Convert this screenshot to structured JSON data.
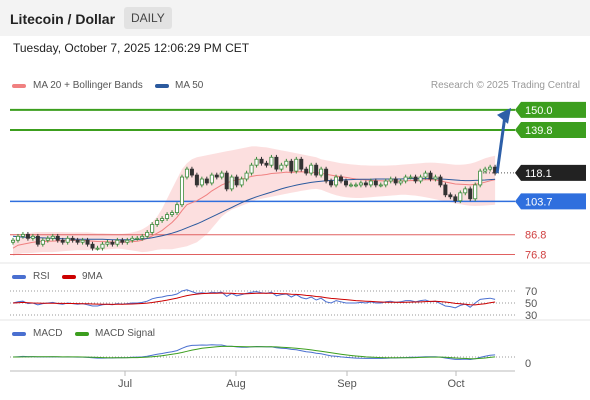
{
  "header": {
    "title": "Litecoin / Dollar",
    "timeframe": "DAILY"
  },
  "timestamp": "Tuesday, October 7, 2025 12:06:29 PM CET",
  "legend": {
    "ma_bb": "MA 20 + Bollinger Bands",
    "ma50": "MA 50",
    "ma_bb_color": "#f08080",
    "ma50_color": "#2b5a9e"
  },
  "credit": "Research © 2025 Trading Central",
  "rsi_panel": {
    "label": "RSI",
    "ma_label": "9MA",
    "rsi_color": "#4a6fd0",
    "ma_color": "#cc0000",
    "levels": [
      "70",
      "50",
      "30"
    ]
  },
  "macd_panel": {
    "label": "MACD",
    "signal_label": "MACD Signal",
    "macd_color": "#4a6fd0",
    "signal_color": "#3c9e1e",
    "zero_label": "0"
  },
  "chart_data": {
    "type": "candlestick",
    "price_range": [
      73,
      156
    ],
    "levels": [
      {
        "value": "150.0",
        "kind": "target",
        "color": "#3c9e1e"
      },
      {
        "value": "139.8",
        "kind": "resistance",
        "color": "#3c9e1e"
      },
      {
        "value": "118.1",
        "kind": "last",
        "color": "#222222"
      },
      {
        "value": "103.7",
        "kind": "pivot",
        "color": "#2f6fde"
      },
      {
        "value": "86.8",
        "kind": "support",
        "color": "#e06060"
      },
      {
        "value": "76.8",
        "kind": "support",
        "color": "#e06060"
      }
    ],
    "x_labels": [
      "Jul",
      "Aug",
      "Sep",
      "Oct"
    ],
    "closes": [
      84,
      86,
      87,
      85,
      86,
      82,
      84,
      85,
      86,
      84,
      83,
      85,
      84,
      83,
      84,
      82,
      80,
      80,
      82,
      83,
      82,
      84,
      83,
      84,
      85,
      85,
      86,
      88,
      92,
      94,
      95,
      97,
      98,
      102,
      116,
      120,
      117,
      112,
      115,
      113,
      117,
      116,
      118,
      110,
      116,
      112,
      115,
      118,
      122,
      125,
      123,
      122,
      126,
      120,
      122,
      124,
      119,
      125,
      120,
      118,
      122,
      117,
      120,
      114,
      112,
      116,
      114,
      112,
      112,
      112,
      113,
      112,
      114,
      112,
      112,
      114,
      115,
      113,
      114,
      116,
      116,
      114,
      116,
      118,
      115,
      116,
      112,
      107,
      106,
      104,
      108,
      110,
      105,
      112,
      119,
      120,
      121,
      118
    ],
    "ma20": [
      80,
      81.5,
      82,
      82.5,
      83,
      83.2,
      83.4,
      83.5,
      83.6,
      83.7,
      83.8,
      83.9,
      84,
      84,
      84,
      83.8,
      83.6,
      83.4,
      83.3,
      83.2,
      83.1,
      83,
      83,
      83.1,
      83.3,
      83.5,
      84,
      85,
      86.2,
      87.6,
      89,
      91,
      93,
      95.6,
      99,
      102,
      103,
      104,
      105.5,
      107,
      109,
      110.5,
      112,
      113,
      114,
      114.5,
      115,
      115.6,
      116.3,
      116.8,
      117,
      117.3,
      117.8,
      118,
      118.2,
      118.5,
      118.3,
      118.6,
      118.7,
      118.5,
      118.4,
      118.2,
      118,
      117.4,
      117,
      116.5,
      116.2,
      115.8,
      115.4,
      115,
      114.7,
      114.5,
      114.4,
      114.2,
      114.1,
      114,
      114,
      114,
      114,
      114.1,
      114.2,
      114.3,
      114.5,
      114.6,
      114.6,
      114.5,
      114.1,
      113.5,
      113,
      112.5,
      112.3,
      112.2,
      112,
      112.3,
      112.8,
      113.4,
      114.1,
      114.7
    ],
    "bb_upper": [
      84,
      86,
      87,
      87.5,
      88,
      88.2,
      88.2,
      88.2,
      88.2,
      88.2,
      88.2,
      88.1,
      88,
      88,
      88,
      88,
      87.8,
      87.6,
      87.5,
      87.4,
      87.3,
      87.2,
      87.3,
      87.6,
      88,
      88.6,
      89.5,
      91,
      93,
      96,
      100,
      105,
      110,
      115,
      120,
      123,
      125,
      126,
      126.5,
      127,
      127.5,
      128,
      128.5,
      129,
      129.5,
      130,
      130.5,
      131,
      131.5,
      131.5,
      131.2,
      131,
      130.5,
      130,
      129.5,
      129,
      128.5,
      128,
      127.5,
      127,
      126.5,
      126,
      125,
      124.5,
      124,
      123.5,
      123,
      122.7,
      122.4,
      122.2,
      122,
      121.9,
      121.8,
      121.8,
      121.8,
      121.8,
      121.9,
      122,
      122.2,
      122.4,
      122.6,
      122.8,
      123,
      123.2,
      123.3,
      123.2,
      123,
      122.8,
      122.5,
      122.2,
      122.2,
      122.4,
      122.8,
      123.5,
      124.5,
      125.5,
      126.2,
      126.8
    ],
    "bb_lower": [
      76,
      77,
      77.5,
      77.5,
      77.6,
      77.8,
      78,
      78,
      78,
      78.2,
      78.4,
      78.6,
      78.8,
      79,
      79,
      79,
      79,
      79,
      79.2,
      79.4,
      79.6,
      79.8,
      79.6,
      79.2,
      78.8,
      78.4,
      78,
      78.2,
      78.6,
      79.2,
      79.5,
      79.5,
      79.5,
      80,
      80.5,
      81,
      82,
      83,
      85,
      87,
      90,
      93,
      96,
      98,
      99.5,
      100.5,
      101.5,
      102.5,
      103.5,
      104.5,
      105,
      105.5,
      106,
      106.5,
      107,
      107.5,
      108,
      108.5,
      109,
      109.4,
      109.8,
      110,
      109.6,
      108.6,
      107.6,
      106.8,
      106.2,
      105.8,
      105.5,
      105.4,
      105.4,
      105.6,
      105.8,
      106,
      106.2,
      106.4,
      106.6,
      106.8,
      107,
      107,
      106.8,
      106.6,
      106.2,
      105.8,
      105.3,
      104.8,
      104.2,
      103.6,
      103.2,
      102.6,
      102.2,
      101.8,
      101.5,
      101.4,
      101.5,
      101.6,
      101.8,
      102
    ],
    "ma50": [
      86,
      85.8,
      85.6,
      85.5,
      85.4,
      85.3,
      85.2,
      85.1,
      85,
      84.9,
      84.8,
      84.7,
      84.6,
      84.5,
      84.5,
      84.5,
      84.5,
      84.5,
      84.5,
      84.4,
      84.3,
      84.3,
      84.3,
      84.3,
      84.3,
      84.4,
      84.6,
      84.9,
      85.3,
      85.8,
      86.3,
      86.9,
      87.6,
      88.4,
      89.3,
      90.3,
      91.3,
      92.3,
      93.4,
      94.6,
      95.8,
      97,
      98.2,
      99.4,
      100.6,
      101.8,
      103,
      104.1,
      105.1,
      106,
      106.8,
      107.6,
      108.4,
      109.2,
      110,
      110.7,
      111.3,
      111.9,
      112.4,
      112.9,
      113.3,
      113.6,
      113.9,
      114.1,
      114.3,
      114.4,
      114.5,
      114.6,
      114.7,
      114.8,
      114.9,
      114.9,
      114.9,
      115,
      115,
      115,
      115,
      115,
      115,
      115.1,
      115.2,
      115.2,
      115.2,
      115.2,
      115.2,
      115.1,
      115,
      114.9,
      114.7,
      114.5,
      114.3,
      114.2,
      114.2,
      114.3,
      114.4,
      114.5,
      114.7,
      114.9
    ],
    "rsi": [
      50,
      52,
      53,
      49,
      50,
      47,
      49,
      50,
      51,
      49,
      48,
      50,
      49,
      48,
      49,
      47,
      45,
      45,
      47,
      48,
      47,
      49,
      48,
      49,
      50,
      50,
      51,
      53,
      57,
      59,
      60,
      62,
      63,
      65,
      70,
      72,
      69,
      66,
      67,
      66,
      68,
      67,
      68,
      61,
      66,
      62,
      64,
      66,
      68,
      69,
      67,
      66,
      68,
      62,
      64,
      65,
      60,
      64,
      59,
      57,
      60,
      55,
      58,
      52,
      50,
      54,
      52,
      50,
      50,
      50,
      51,
      50,
      52,
      50,
      50,
      52,
      53,
      51,
      52,
      54,
      54,
      52,
      54,
      55,
      52,
      53,
      49,
      45,
      44,
      42,
      46,
      48,
      43,
      50,
      56,
      57,
      58,
      56
    ],
    "rsi_ma": [
      50,
      50.5,
      51,
      50.5,
      50,
      49.8,
      49.7,
      49.6,
      49.5,
      49.4,
      49.3,
      49.2,
      49.1,
      49,
      48.9,
      48.7,
      48.4,
      48.1,
      47.9,
      47.8,
      47.7,
      47.8,
      47.9,
      48.1,
      48.4,
      48.7,
      49.2,
      49.9,
      50.9,
      52.1,
      53.4,
      54.9,
      56.5,
      58.2,
      60.4,
      62.4,
      63.8,
      64.8,
      65.6,
      66,
      66.3,
      66.4,
      66.6,
      66.2,
      66.1,
      65.6,
      65.5,
      65.5,
      65.8,
      66.2,
      66.4,
      66.3,
      66.4,
      65.8,
      65.5,
      65.3,
      64.6,
      64.4,
      63.6,
      62.6,
      62,
      60.9,
      60.2,
      58.8,
      57.6,
      57.1,
      56.4,
      55.6,
      54.8,
      54,
      53.5,
      53,
      52.7,
      52.1,
      51.6,
      51.4,
      51.3,
      51.1,
      51,
      51.3,
      51.5,
      51.6,
      51.9,
      52.4,
      52.6,
      52.8,
      52.4,
      51.6,
      50.6,
      49.4,
      48.6,
      47.9,
      47,
      46.8,
      47.8,
      48.9,
      50.4,
      51.7
    ],
    "macd": [
      0,
      0.2,
      0.4,
      0.3,
      0.3,
      0.1,
      0.1,
      0.1,
      0.2,
      0.1,
      0,
      0.1,
      0,
      -0.1,
      -0.1,
      -0.3,
      -0.6,
      -0.8,
      -0.8,
      -0.7,
      -0.7,
      -0.5,
      -0.5,
      -0.4,
      -0.2,
      -0.1,
      0.1,
      0.5,
      1.2,
      1.9,
      2.5,
      3.2,
      3.8,
      4.6,
      6.2,
      7.6,
      8.3,
      8.4,
      8.6,
      8.5,
      8.7,
      8.6,
      8.6,
      7.8,
      7.7,
      7.2,
      7,
      7,
      7.2,
      7.5,
      7.4,
      7.2,
      7.3,
      6.6,
      6.3,
      6.1,
      5.4,
      5.2,
      4.5,
      3.8,
      3.4,
      2.7,
      2.3,
      1.5,
      0.8,
      0.5,
      0.1,
      -0.3,
      -0.6,
      -0.8,
      -0.9,
      -1,
      -0.9,
      -1,
      -1,
      -0.9,
      -0.7,
      -0.7,
      -0.6,
      -0.4,
      -0.2,
      -0.2,
      0,
      0.2,
      0.2,
      0.2,
      -0.1,
      -0.7,
      -1.2,
      -1.7,
      -1.7,
      -1.5,
      -1.8,
      -1.3,
      -0.3,
      0.5,
      1.2,
      1.5
    ],
    "macd_signal": [
      0,
      0,
      0.1,
      0.1,
      0.2,
      0.2,
      0.2,
      0.2,
      0.2,
      0.2,
      0.1,
      0.1,
      0.1,
      0.1,
      0,
      -0.1,
      -0.2,
      -0.3,
      -0.4,
      -0.5,
      -0.5,
      -0.5,
      -0.5,
      -0.5,
      -0.4,
      -0.4,
      -0.3,
      -0.1,
      0.2,
      0.5,
      0.9,
      1.4,
      1.9,
      2.5,
      3.2,
      4.1,
      4.9,
      5.6,
      6.2,
      6.6,
      7,
      7.3,
      7.6,
      7.6,
      7.6,
      7.5,
      7.4,
      7.3,
      7.3,
      7.3,
      7.3,
      7.3,
      7.3,
      7.2,
      7,
      6.8,
      6.5,
      6.2,
      5.9,
      5.5,
      5.1,
      4.6,
      4.1,
      3.6,
      3,
      2.5,
      2,
      1.5,
      1.1,
      0.7,
      0.4,
      0.1,
      -0.1,
      -0.3,
      -0.4,
      -0.5,
      -0.5,
      -0.6,
      -0.6,
      -0.5,
      -0.5,
      -0.4,
      -0.3,
      -0.2,
      -0.1,
      -0.1,
      -0.1,
      -0.2,
      -0.4,
      -0.7,
      -0.9,
      -1,
      -1.2,
      -1.2,
      -1,
      -0.7,
      -0.3,
      0.1
    ]
  }
}
